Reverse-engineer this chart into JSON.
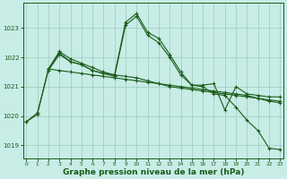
{
  "bg_color": "#c8ece6",
  "grid_color": "#99ccbb",
  "line_color": "#1a5c1a",
  "ylabel_ticks": [
    1019,
    1020,
    1021,
    1022,
    1023
  ],
  "xlabel_label": "Graphe pression niveau de la mer (hPa)",
  "series": [
    {
      "x": [
        0,
        1,
        2,
        3,
        4,
        5,
        6,
        7,
        8,
        9,
        10,
        11,
        12,
        13,
        14,
        15,
        16,
        17,
        18,
        19,
        20,
        21,
        22,
        23
      ],
      "y": [
        1019.8,
        1020.1,
        1021.55,
        1022.1,
        1021.85,
        1021.75,
        1021.55,
        1021.45,
        1021.4,
        1023.2,
        1023.5,
        1022.85,
        1022.65,
        1022.1,
        1021.5,
        1021.05,
        1021.0,
        1020.75,
        1020.7,
        1020.3,
        1019.85,
        1019.5,
        1018.9,
        1018.85
      ]
    },
    {
      "x": [
        0,
        1,
        2,
        3,
        4,
        5,
        6,
        7,
        8,
        9,
        10,
        11,
        12,
        13,
        14,
        15,
        16,
        17,
        18,
        19,
        20,
        21,
        22,
        23
      ],
      "y": [
        1019.8,
        1020.05,
        1021.6,
        1022.15,
        1021.85,
        1021.75,
        1021.55,
        1021.45,
        1021.35,
        1023.1,
        1023.4,
        1022.75,
        1022.5,
        1022.0,
        1021.4,
        1021.05,
        1021.05,
        1021.1,
        1020.2,
        1021.0,
        1020.75,
        1020.7,
        1020.65,
        1020.65
      ]
    },
    {
      "x": [
        2,
        3,
        4,
        5,
        6,
        7,
        8,
        9,
        10,
        11,
        12,
        13,
        14,
        15,
        16,
        17,
        18,
        19,
        20,
        21,
        22,
        23
      ],
      "y": [
        1021.6,
        1021.55,
        1021.5,
        1021.45,
        1021.4,
        1021.35,
        1021.3,
        1021.25,
        1021.2,
        1021.15,
        1021.1,
        1021.05,
        1021.0,
        1020.95,
        1020.9,
        1020.85,
        1020.8,
        1020.75,
        1020.7,
        1020.6,
        1020.55,
        1020.5
      ]
    },
    {
      "x": [
        2,
        3,
        4,
        5,
        6,
        7,
        8,
        9,
        10,
        11,
        12,
        13,
        14,
        15,
        16,
        17,
        18,
        19,
        20,
        21,
        22,
        23
      ],
      "y": [
        1021.6,
        1022.2,
        1021.95,
        1021.8,
        1021.65,
        1021.5,
        1021.4,
        1021.35,
        1021.3,
        1021.2,
        1021.1,
        1021.0,
        1020.95,
        1020.9,
        1020.85,
        1020.8,
        1020.75,
        1020.7,
        1020.65,
        1020.6,
        1020.5,
        1020.45
      ]
    }
  ],
  "xlim": [
    -0.3,
    23.3
  ],
  "ylim": [
    1018.55,
    1023.85
  ],
  "xticks": [
    0,
    1,
    2,
    3,
    4,
    5,
    6,
    7,
    8,
    9,
    10,
    11,
    12,
    13,
    14,
    15,
    16,
    17,
    18,
    19,
    20,
    21,
    22,
    23
  ]
}
